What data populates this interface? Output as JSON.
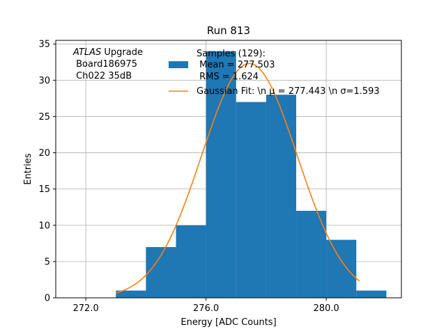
{
  "chart_data": {
    "type": "bar",
    "title": "Run 813",
    "xlabel": "Energy [ADC Counts]",
    "ylabel": "Entries",
    "xlim": [
      271.0,
      282.5
    ],
    "ylim": [
      0,
      35.5
    ],
    "xticks": [
      272.0,
      276.0,
      280.0
    ],
    "xtick_labels": [
      "272.0",
      "276.0",
      "280.0"
    ],
    "yticks": [
      0,
      5,
      10,
      15,
      20,
      25,
      30,
      35
    ],
    "ytick_labels": [
      "0",
      "5",
      "10",
      "15",
      "20",
      "25",
      "30",
      "35"
    ],
    "grid": true,
    "bin_edges": [
      273,
      274,
      275,
      276,
      277,
      278,
      279,
      280,
      281,
      282
    ],
    "values": [
      1,
      7,
      10,
      34,
      27,
      28,
      12,
      8,
      1
    ],
    "bar_color": "#1f77b4",
    "fit": {
      "mu": 277.443,
      "sigma": 1.593,
      "amplitude": 32.3,
      "x_range": [
        273.0,
        281.1
      ],
      "color": "#ff7f0e"
    },
    "annotation": {
      "line1_italic": "ATLAS",
      "line1_rest": " Upgrade",
      "line2": " Board186975",
      "line3": " Ch022 35dB"
    },
    "legend": {
      "placement": "top-right",
      "samples_line1": "Samples (129):",
      "samples_line2": " Mean = 277.503",
      "samples_line3": " RMS = 1.624",
      "fit_label": "Gaussian Fit: \\n μ = 277.443 \\n σ=1.593"
    }
  }
}
